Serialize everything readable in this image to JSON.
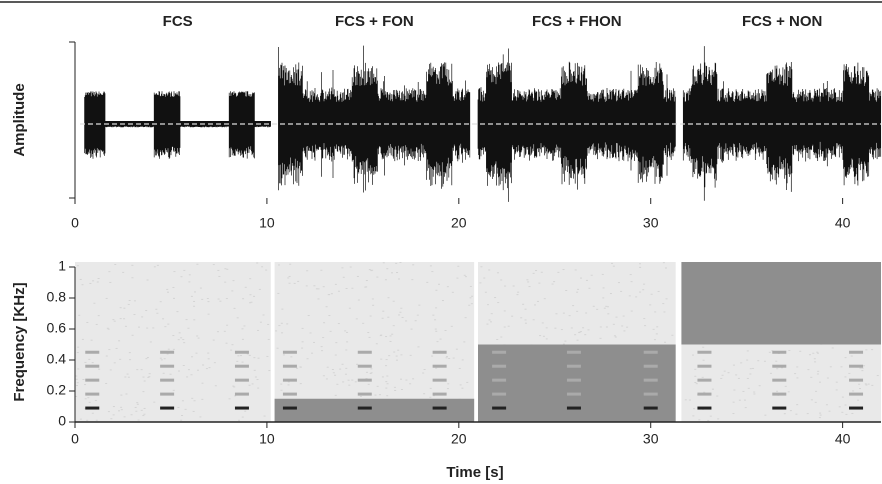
{
  "chart_data": [
    {
      "type": "waveform",
      "ylabel": "Amplitude",
      "xlim": [
        0,
        42
      ],
      "xticks": [
        0,
        10,
        20,
        30,
        40
      ],
      "segments": [
        {
          "name": "FCS",
          "start": 0.5,
          "end": 10.2
        },
        {
          "name": "FCS + FON",
          "start": 10.6,
          "end": 20.6
        },
        {
          "name": "FCS + FHON",
          "start": 21,
          "end": 31.3
        },
        {
          "name": "FCS + NON",
          "start": 31.7,
          "end": 42
        }
      ],
      "bursts": [
        0.9,
        4.8,
        8.7,
        11.2,
        15.1,
        19,
        22.1,
        26,
        30,
        32.8,
        36.7,
        40.7
      ]
    },
    {
      "type": "spectrogram",
      "xlabel": "Time [s]",
      "ylabel": "Frequency [KHz]",
      "xlim": [
        0,
        42
      ],
      "xticks": [
        0,
        10,
        20,
        30,
        40
      ],
      "ylim": [
        0,
        1
      ],
      "yticks": [
        0,
        0.2,
        0.4,
        0.6,
        0.8,
        1
      ],
      "harmonics": [
        0.09,
        0.18,
        0.27,
        0.36,
        0.45
      ],
      "segments": [
        {
          "start": 0,
          "end": 10.2,
          "band": [
            0,
            0
          ]
        },
        {
          "start": 10.4,
          "end": 20.8,
          "band": [
            0,
            0.15
          ]
        },
        {
          "start": 21,
          "end": 31.3,
          "band": [
            0,
            0.5
          ]
        },
        {
          "start": 31.6,
          "end": 42,
          "band": [
            0.5,
            1
          ]
        }
      ]
    }
  ]
}
